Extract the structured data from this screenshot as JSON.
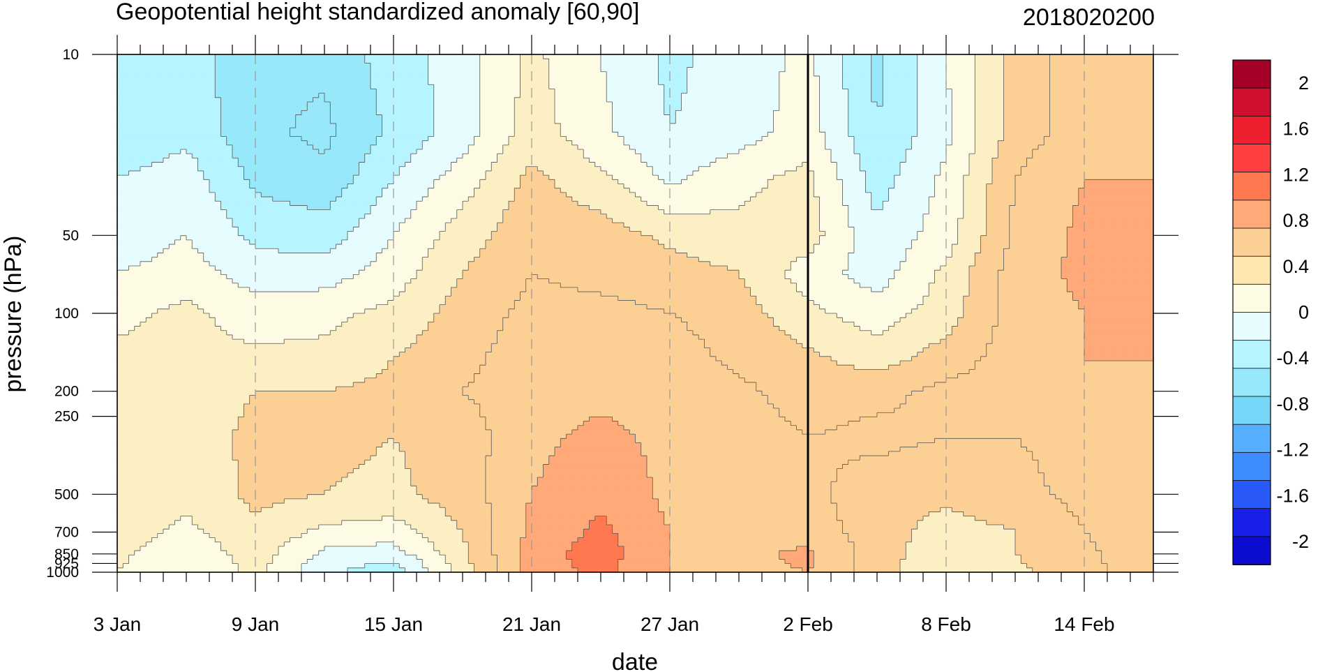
{
  "chart_data": {
    "type": "heatmap",
    "title": "Geopotential height standardized anomaly [60,90]",
    "right_title": "2018020200",
    "xlabel": "date",
    "ylabel": "pressure (hPa)",
    "x_ticks": [
      {
        "day": 0,
        "label": "3 Jan"
      },
      {
        "day": 6,
        "label": "9 Jan"
      },
      {
        "day": 12,
        "label": "15 Jan"
      },
      {
        "day": 18,
        "label": "21 Jan"
      },
      {
        "day": 24,
        "label": "27 Jan"
      },
      {
        "day": 30,
        "label": "2 Feb"
      },
      {
        "day": 36,
        "label": "8 Feb"
      },
      {
        "day": 42,
        "label": "14 Feb"
      }
    ],
    "x_range_days": [
      0,
      45
    ],
    "y_ticks": [
      10,
      50,
      100,
      200,
      250,
      500,
      700,
      850,
      925,
      1000
    ],
    "y_tick_labels": [
      "10",
      "50",
      "100",
      "200",
      "250",
      "500",
      "700",
      "850",
      "925",
      "1000"
    ],
    "y_range": [
      1000,
      10
    ],
    "y_scale": "log-pressure",
    "marker_day": 30,
    "colorbar": {
      "labels": [
        "2",
        "1.6",
        "1.2",
        "0.8",
        "0.4",
        "0",
        "-0.4",
        "-0.8",
        "-1.2",
        "-1.6",
        "-2"
      ],
      "colors": [
        "#a50026",
        "#d01030",
        "#ee2030",
        "#ff4040",
        "#ff7850",
        "#ffa878",
        "#fcd094",
        "#fde6b0",
        "#fefbe4",
        "#e6fcff",
        "#b6f4ff",
        "#98e8fb",
        "#76d6f8",
        "#56b0ff",
        "#3c8cff",
        "#2858f8",
        "#1820e8",
        "#0c0cd0"
      ]
    },
    "levels": [
      -1.0,
      -0.8,
      -0.6,
      -0.4,
      -0.2,
      0,
      0.2,
      0.4,
      0.6,
      0.8,
      1.0
    ],
    "fill_colors": [
      "#76d6f8",
      "#98e8fb",
      "#98e8fb",
      "#b6f4ff",
      "#e6fcff",
      "#fefbe4",
      "#fdefc4",
      "#fcd094",
      "#fcd094",
      "#ffa878",
      "#ff7850",
      "#ff4040"
    ],
    "pressure_levels": [
      10,
      20,
      30,
      50,
      70,
      100,
      150,
      200,
      300,
      500,
      700,
      850,
      1000
    ],
    "grid_days": [
      0,
      3,
      6,
      9,
      12,
      15,
      18,
      21,
      24,
      27,
      30,
      33,
      36,
      39,
      42,
      45
    ],
    "grid_values": [
      [
        -0.55,
        -0.5,
        -0.75,
        -0.75,
        -0.5,
        -0.3,
        0.05,
        -0.2,
        -0.45,
        -0.3,
        -0.15,
        -0.65,
        -0.2,
        0.3,
        0.5,
        0.5
      ],
      [
        -0.6,
        -0.45,
        -0.75,
        -0.85,
        -0.55,
        -0.3,
        0.1,
        -0.15,
        -0.4,
        -0.3,
        -0.1,
        -0.6,
        -0.25,
        0.3,
        0.5,
        0.55
      ],
      [
        -0.4,
        -0.3,
        -0.65,
        -0.75,
        -0.4,
        -0.1,
        0.25,
        0.05,
        -0.25,
        -0.05,
        0.05,
        -0.5,
        -0.15,
        0.4,
        0.6,
        0.6
      ],
      [
        -0.35,
        -0.2,
        -0.45,
        -0.5,
        -0.2,
        0.1,
        0.35,
        0.3,
        0.15,
        0.05,
        0.1,
        -0.35,
        -0.1,
        0.45,
        0.65,
        0.7
      ],
      [
        -0.2,
        -0.1,
        -0.3,
        -0.3,
        -0.1,
        0.2,
        0.4,
        0.35,
        0.3,
        0.2,
        -0.1,
        -0.3,
        0.05,
        0.5,
        0.65,
        0.7
      ],
      [
        -0.05,
        0.05,
        -0.1,
        -0.05,
        0.05,
        0.3,
        0.45,
        0.45,
        0.4,
        0.3,
        0.05,
        -0.1,
        0.1,
        0.5,
        0.6,
        0.65
      ],
      [
        0.05,
        0.05,
        0.05,
        0.05,
        0.2,
        0.35,
        0.5,
        0.5,
        0.5,
        0.35,
        0.25,
        0.1,
        0.3,
        0.5,
        0.6,
        0.6
      ],
      [
        0.1,
        0.1,
        0.2,
        0.2,
        0.25,
        0.4,
        0.5,
        0.55,
        0.5,
        0.45,
        0.3,
        0.35,
        0.45,
        0.5,
        0.55,
        0.55
      ],
      [
        0.05,
        0.1,
        0.25,
        0.25,
        0.2,
        0.3,
        0.55,
        0.65,
        0.55,
        0.5,
        0.4,
        0.45,
        0.4,
        0.4,
        0.45,
        0.55
      ],
      [
        0.15,
        0.05,
        0.25,
        0.2,
        0.15,
        0.3,
        0.6,
        0.75,
        0.55,
        0.5,
        0.45,
        0.3,
        0.25,
        0.35,
        0.45,
        0.55
      ],
      [
        0.1,
        -0.05,
        0.15,
        -0.05,
        -0.1,
        0.2,
        0.65,
        0.85,
        0.6,
        0.55,
        0.5,
        0.3,
        0.1,
        0.2,
        0.4,
        0.55
      ],
      [
        0.05,
        -0.15,
        0.1,
        -0.25,
        -0.3,
        0.15,
        0.7,
        0.9,
        0.6,
        0.55,
        0.65,
        0.3,
        0.05,
        0.2,
        0.35,
        0.55
      ],
      [
        0.0,
        -0.2,
        0.05,
        -0.35,
        -0.55,
        0.1,
        0.7,
        0.85,
        0.6,
        0.55,
        0.6,
        0.3,
        0.0,
        0.15,
        0.35,
        0.5
      ]
    ]
  }
}
